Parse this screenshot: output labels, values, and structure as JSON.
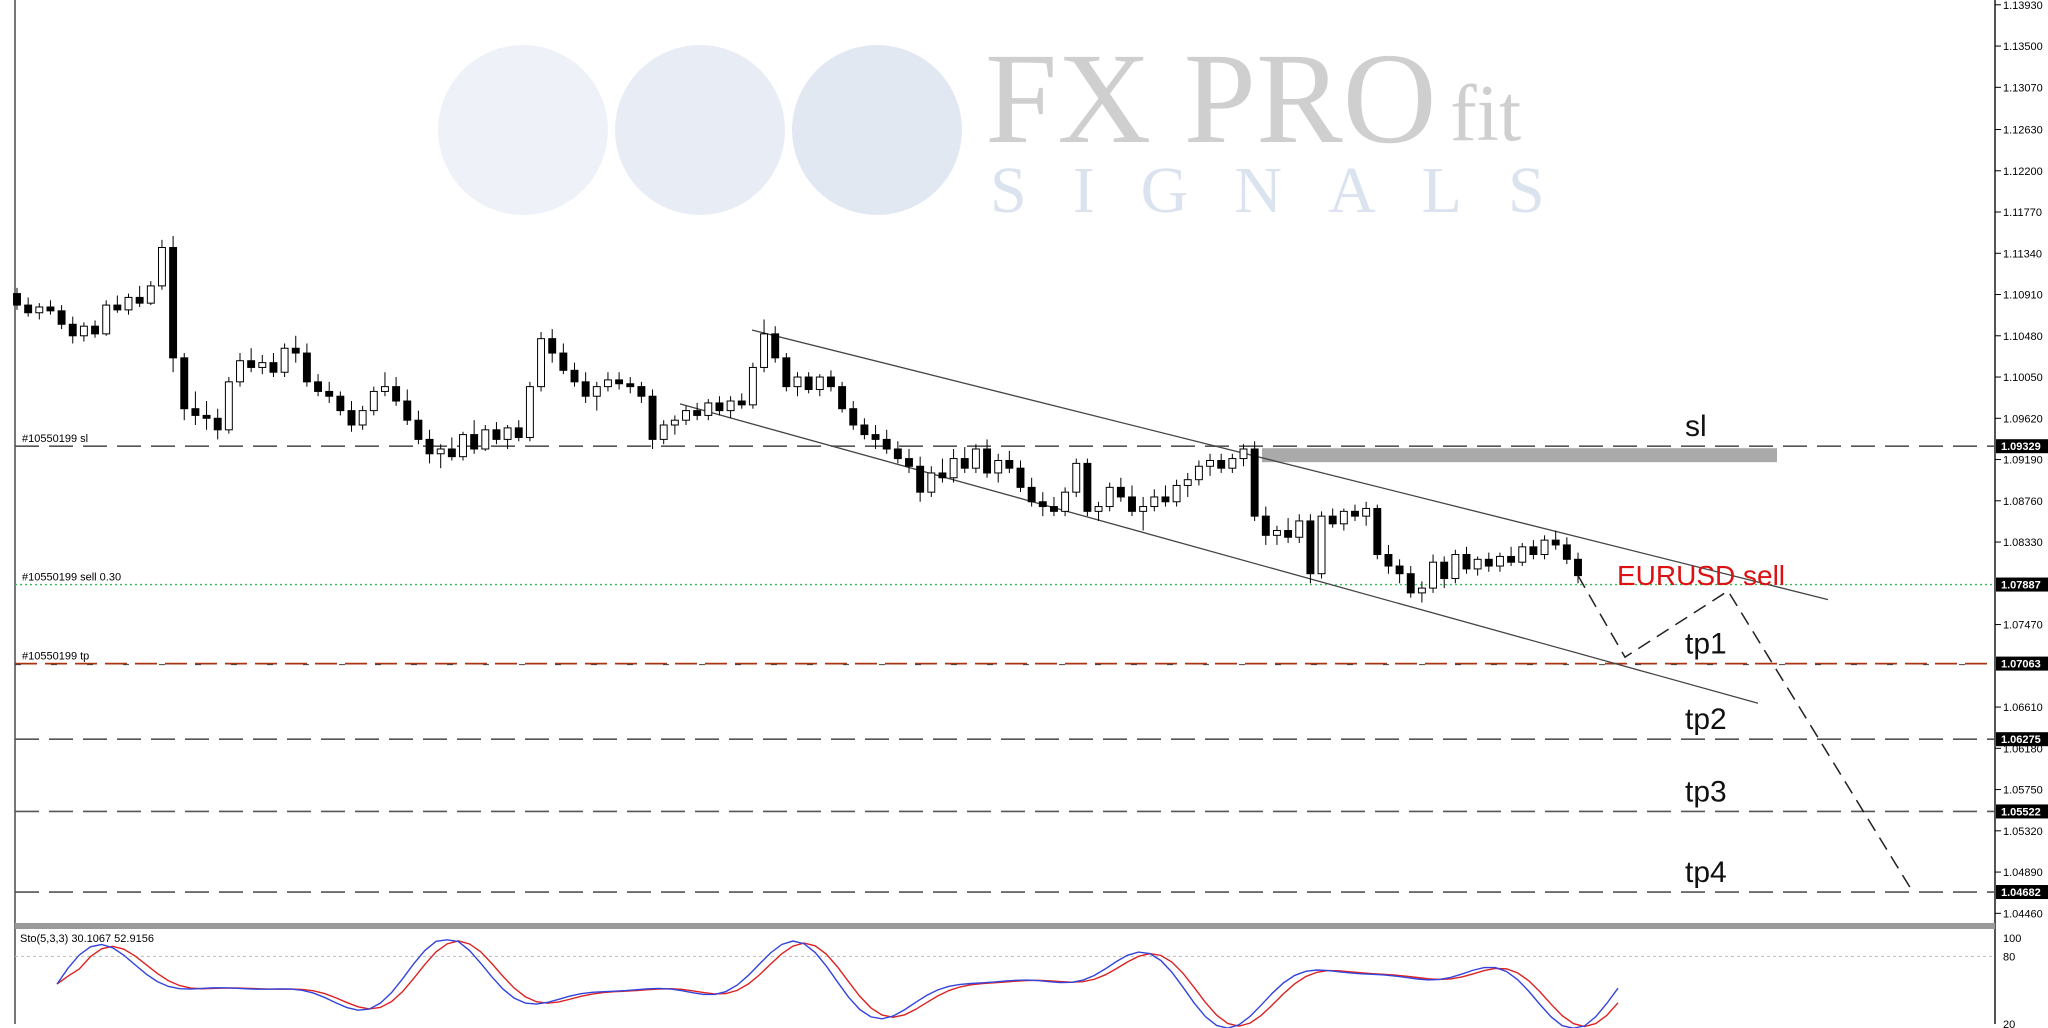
{
  "watermark": {
    "brand": "FX PRO",
    "suffix": "fit",
    "subtitle": "SIGNALS"
  },
  "chart_data": {
    "type": "candlestick",
    "symbol_label": "EURUSD sell",
    "price_axis": {
      "range": [
        1.0438,
        1.1398
      ],
      "ticks": [
        "1.13930",
        "1.13500",
        "1.13070",
        "1.12630",
        "1.12200",
        "1.11770",
        "1.11340",
        "1.10910",
        "1.10480",
        "1.10050",
        "1.09620",
        "1.09190",
        "1.08760",
        "1.08330",
        "1.07470",
        "1.06610",
        "1.06180",
        "1.05750",
        "1.05320",
        "1.04890",
        "1.04460"
      ]
    },
    "levels": [
      {
        "name": "sl",
        "price": 1.09329,
        "box": "1.09329",
        "order_label": "#10550199 sl",
        "label": "sl",
        "style": "dash-gray"
      },
      {
        "name": "entry",
        "price": 1.07887,
        "box": "1.07887",
        "order_label": "#10550199 sell 0.30",
        "label": "",
        "style": "green-dotted"
      },
      {
        "name": "tp1",
        "price": 1.07063,
        "box": "1.07063",
        "order_label": "#10550199 tp",
        "label": "tp1",
        "style": "dash-red"
      },
      {
        "name": "tp2",
        "price": 1.06275,
        "box": "1.06275",
        "order_label": "",
        "label": "tp2",
        "style": "dash-gray"
      },
      {
        "name": "tp3",
        "price": 1.05522,
        "box": "1.05522",
        "order_label": "",
        "label": "tp3",
        "style": "dash-gray"
      },
      {
        "name": "tp4",
        "price": 1.04682,
        "box": "1.04682",
        "order_label": "",
        "label": "tp4",
        "style": "dash-gray"
      }
    ],
    "candles": [
      [
        1.1092,
        1.1098,
        1.1075,
        1.108
      ],
      [
        1.108,
        1.1088,
        1.1068,
        1.1072
      ],
      [
        1.1072,
        1.1082,
        1.1065,
        1.1078
      ],
      [
        1.1078,
        1.1085,
        1.107,
        1.1074
      ],
      [
        1.1074,
        1.108,
        1.1055,
        1.106
      ],
      [
        1.106,
        1.1068,
        1.104,
        1.1048
      ],
      [
        1.1048,
        1.1062,
        1.1042,
        1.1058
      ],
      [
        1.1058,
        1.1064,
        1.1046,
        1.105
      ],
      [
        1.105,
        1.1085,
        1.1048,
        1.108
      ],
      [
        1.108,
        1.109,
        1.1072,
        1.1075
      ],
      [
        1.1075,
        1.1092,
        1.107,
        1.1088
      ],
      [
        1.1088,
        1.11,
        1.1078,
        1.1082
      ],
      [
        1.1082,
        1.1105,
        1.108,
        1.11
      ],
      [
        1.11,
        1.1148,
        1.1096,
        1.114
      ],
      [
        1.114,
        1.1152,
        1.101,
        1.1025
      ],
      [
        1.1025,
        1.103,
        1.096,
        1.0972
      ],
      [
        1.0972,
        1.099,
        1.0955,
        1.0965
      ],
      [
        1.0965,
        1.098,
        1.095,
        1.0962
      ],
      [
        1.0962,
        1.0972,
        1.094,
        1.095
      ],
      [
        1.095,
        1.1005,
        1.0946,
        1.1
      ],
      [
        1.1,
        1.103,
        1.0995,
        1.1022
      ],
      [
        1.1022,
        1.1035,
        1.101,
        1.1015
      ],
      [
        1.1015,
        1.1028,
        1.1008,
        1.102
      ],
      [
        1.102,
        1.103,
        1.1005,
        1.101
      ],
      [
        1.101,
        1.104,
        1.1005,
        1.1035
      ],
      [
        1.1035,
        1.1048,
        1.102,
        1.103
      ],
      [
        1.103,
        1.104,
        1.0995,
        1.1
      ],
      [
        1.1,
        1.1008,
        1.0985,
        1.099
      ],
      [
        1.099,
        1.1,
        1.0978,
        1.0985
      ],
      [
        1.0985,
        1.099,
        1.0965,
        1.097
      ],
      [
        1.097,
        1.098,
        1.0948,
        1.0955
      ],
      [
        1.0955,
        1.0975,
        1.095,
        1.097
      ],
      [
        1.097,
        1.0995,
        1.0965,
        1.099
      ],
      [
        1.099,
        1.101,
        1.0985,
        1.0995
      ],
      [
        1.0995,
        1.1005,
        1.0975,
        1.098
      ],
      [
        1.098,
        1.0992,
        1.0955,
        1.096
      ],
      [
        1.096,
        1.097,
        1.0935,
        1.094
      ],
      [
        1.094,
        1.095,
        1.0915,
        1.0925
      ],
      [
        1.0925,
        1.0935,
        1.091,
        1.093
      ],
      [
        1.093,
        1.0942,
        1.0918,
        1.0922
      ],
      [
        1.0922,
        1.0948,
        1.0918,
        1.0945
      ],
      [
        1.0945,
        1.096,
        1.0925,
        1.093
      ],
      [
        1.093,
        1.0955,
        1.0928,
        1.095
      ],
      [
        1.095,
        1.0958,
        1.0935,
        1.094
      ],
      [
        1.094,
        1.0955,
        1.093,
        1.0952
      ],
      [
        1.0952,
        1.096,
        1.0938,
        1.0942
      ],
      [
        1.0942,
        1.1,
        1.0938,
        1.0995
      ],
      [
        1.0995,
        1.1052,
        1.099,
        1.1045
      ],
      [
        1.1045,
        1.1055,
        1.102,
        1.103
      ],
      [
        1.103,
        1.104,
        1.1008,
        1.1012
      ],
      [
        1.1012,
        1.102,
        1.0995,
        1.1
      ],
      [
        1.1,
        1.101,
        1.0978,
        1.0985
      ],
      [
        1.0985,
        1.1,
        1.097,
        1.0995
      ],
      [
        1.0995,
        1.101,
        1.099,
        1.1002
      ],
      [
        1.1002,
        1.101,
        1.0992,
        1.0998
      ],
      [
        1.0998,
        1.1005,
        1.0988,
        1.0995
      ],
      [
        1.0995,
        1.1,
        1.0978,
        1.0985
      ],
      [
        1.0985,
        1.0992,
        1.093,
        1.094
      ],
      [
        1.094,
        1.096,
        1.0935,
        1.0955
      ],
      [
        1.0955,
        1.0965,
        1.0945,
        1.096
      ],
      [
        1.096,
        1.0975,
        1.0955,
        1.097
      ],
      [
        1.097,
        1.0978,
        1.096,
        1.0965
      ],
      [
        1.0965,
        1.0982,
        1.096,
        1.0978
      ],
      [
        1.0978,
        1.0985,
        1.0965,
        1.097
      ],
      [
        1.097,
        1.0985,
        1.0962,
        1.098
      ],
      [
        1.098,
        1.0988,
        1.0972,
        1.0976
      ],
      [
        1.0976,
        1.102,
        1.0972,
        1.1015
      ],
      [
        1.1015,
        1.1065,
        1.101,
        1.105
      ],
      [
        1.105,
        1.1058,
        1.102,
        1.1025
      ],
      [
        1.1025,
        1.103,
        1.099,
        1.0995
      ],
      [
        1.0995,
        1.101,
        1.0985,
        1.1005
      ],
      [
        1.1005,
        1.101,
        1.0988,
        1.0992
      ],
      [
        1.0992,
        1.1008,
        1.0985,
        1.1005
      ],
      [
        1.1005,
        1.1012,
        1.099,
        1.0995
      ],
      [
        1.0995,
        1.1,
        1.0968,
        1.0972
      ],
      [
        1.0972,
        1.098,
        1.095,
        1.0955
      ],
      [
        1.0955,
        1.0962,
        1.094,
        1.0945
      ],
      [
        1.0945,
        1.0955,
        1.093,
        1.094
      ],
      [
        1.094,
        1.095,
        1.0925,
        1.093
      ],
      [
        1.093,
        1.0938,
        1.0915,
        1.092
      ],
      [
        1.092,
        1.093,
        1.0905,
        1.0912
      ],
      [
        1.0912,
        1.0922,
        1.0875,
        1.0885
      ],
      [
        1.0885,
        1.0912,
        1.088,
        1.0905
      ],
      [
        1.0905,
        1.092,
        1.0895,
        1.09
      ],
      [
        1.09,
        1.093,
        1.0895,
        1.092
      ],
      [
        1.092,
        1.0932,
        1.0905,
        1.091
      ],
      [
        1.091,
        1.0935,
        1.0905,
        1.093
      ],
      [
        1.093,
        1.094,
        1.09,
        1.0905
      ],
      [
        1.0905,
        1.0925,
        1.0895,
        1.0918
      ],
      [
        1.0918,
        1.0928,
        1.0905,
        1.091
      ],
      [
        1.091,
        1.0918,
        1.0885,
        1.089
      ],
      [
        1.089,
        1.09,
        1.087,
        1.0875
      ],
      [
        1.0875,
        1.0885,
        1.086,
        1.087
      ],
      [
        1.087,
        1.088,
        1.086,
        1.0865
      ],
      [
        1.0865,
        1.089,
        1.086,
        1.0885
      ],
      [
        1.0885,
        1.092,
        1.088,
        1.0915
      ],
      [
        1.0915,
        1.092,
        1.086,
        1.0865
      ],
      [
        1.0865,
        1.0875,
        1.0855,
        1.087
      ],
      [
        1.087,
        1.0895,
        1.0865,
        1.089
      ],
      [
        1.089,
        1.09,
        1.0875,
        1.088
      ],
      [
        1.088,
        1.0892,
        1.086,
        1.0865
      ],
      [
        1.0865,
        1.088,
        1.0845,
        1.087
      ],
      [
        1.087,
        1.0888,
        1.0865,
        1.088
      ],
      [
        1.088,
        1.0892,
        1.087,
        1.0875
      ],
      [
        1.0875,
        1.0898,
        1.087,
        1.0892
      ],
      [
        1.0892,
        1.0905,
        1.088,
        1.0898
      ],
      [
        1.0898,
        1.0918,
        1.0892,
        1.0912
      ],
      [
        1.0912,
        1.0925,
        1.0902,
        1.0918
      ],
      [
        1.0918,
        1.0925,
        1.0905,
        1.091
      ],
      [
        1.091,
        1.0925,
        1.0905,
        1.092
      ],
      [
        1.092,
        1.0935,
        1.0912,
        1.093
      ],
      [
        1.093,
        1.0938,
        1.0855,
        1.086
      ],
      [
        1.086,
        1.087,
        1.083,
        1.084
      ],
      [
        1.084,
        1.085,
        1.083,
        1.0845
      ],
      [
        1.0845,
        1.0858,
        1.0832,
        1.0838
      ],
      [
        1.0838,
        1.0862,
        1.0832,
        1.0855
      ],
      [
        1.0855,
        1.0862,
        1.079,
        1.08
      ],
      [
        1.08,
        1.0865,
        1.0795,
        1.086
      ],
      [
        1.086,
        1.0868,
        1.0848,
        1.0852
      ],
      [
        1.0852,
        1.0868,
        1.0845,
        1.0865
      ],
      [
        1.0865,
        1.0872,
        1.0855,
        1.086
      ],
      [
        1.086,
        1.0875,
        1.085,
        1.0868
      ],
      [
        1.0868,
        1.0872,
        1.0815,
        1.082
      ],
      [
        1.082,
        1.083,
        1.08,
        1.0808
      ],
      [
        1.0808,
        1.0815,
        1.079,
        1.08
      ],
      [
        1.08,
        1.0808,
        1.0775,
        1.078
      ],
      [
        1.078,
        1.0792,
        1.077,
        1.0785
      ],
      [
        1.0785,
        1.082,
        1.078,
        1.0812
      ],
      [
        1.0812,
        1.0818,
        1.0785,
        1.0795
      ],
      [
        1.0795,
        1.0825,
        1.079,
        1.082
      ],
      [
        1.082,
        1.0828,
        1.08,
        1.0805
      ],
      [
        1.0805,
        1.0818,
        1.0798,
        1.0815
      ],
      [
        1.0815,
        1.0822,
        1.0802,
        1.0808
      ],
      [
        1.0808,
        1.0822,
        1.0802,
        1.0818
      ],
      [
        1.0818,
        1.0828,
        1.0808,
        1.0812
      ],
      [
        1.0812,
        1.0832,
        1.0808,
        1.0828
      ],
      [
        1.0828,
        1.0835,
        1.0815,
        1.082
      ],
      [
        1.082,
        1.084,
        1.0815,
        1.0835
      ],
      [
        1.0835,
        1.0845,
        1.0825,
        1.083
      ],
      [
        1.083,
        1.0838,
        1.081,
        1.0815
      ],
      [
        1.0815,
        1.0822,
        1.079,
        1.0798
      ]
    ],
    "channel_upper": [
      [
        1.1054,
        1.0773
      ]
    ],
    "channel_lower": [
      [
        1.0977,
        1.0665
      ]
    ],
    "projection": [
      [
        1.0798
      ],
      [
        1.0713
      ],
      [
        1.0782
      ],
      [
        1.0468
      ]
    ],
    "indicator": {
      "label": "Sto(5,3,3) 30.1067 52.9156",
      "levels": [
        "100",
        "80",
        "20"
      ],
      "main_color": "#3344dd",
      "signal_color": "#dd2222"
    }
  }
}
